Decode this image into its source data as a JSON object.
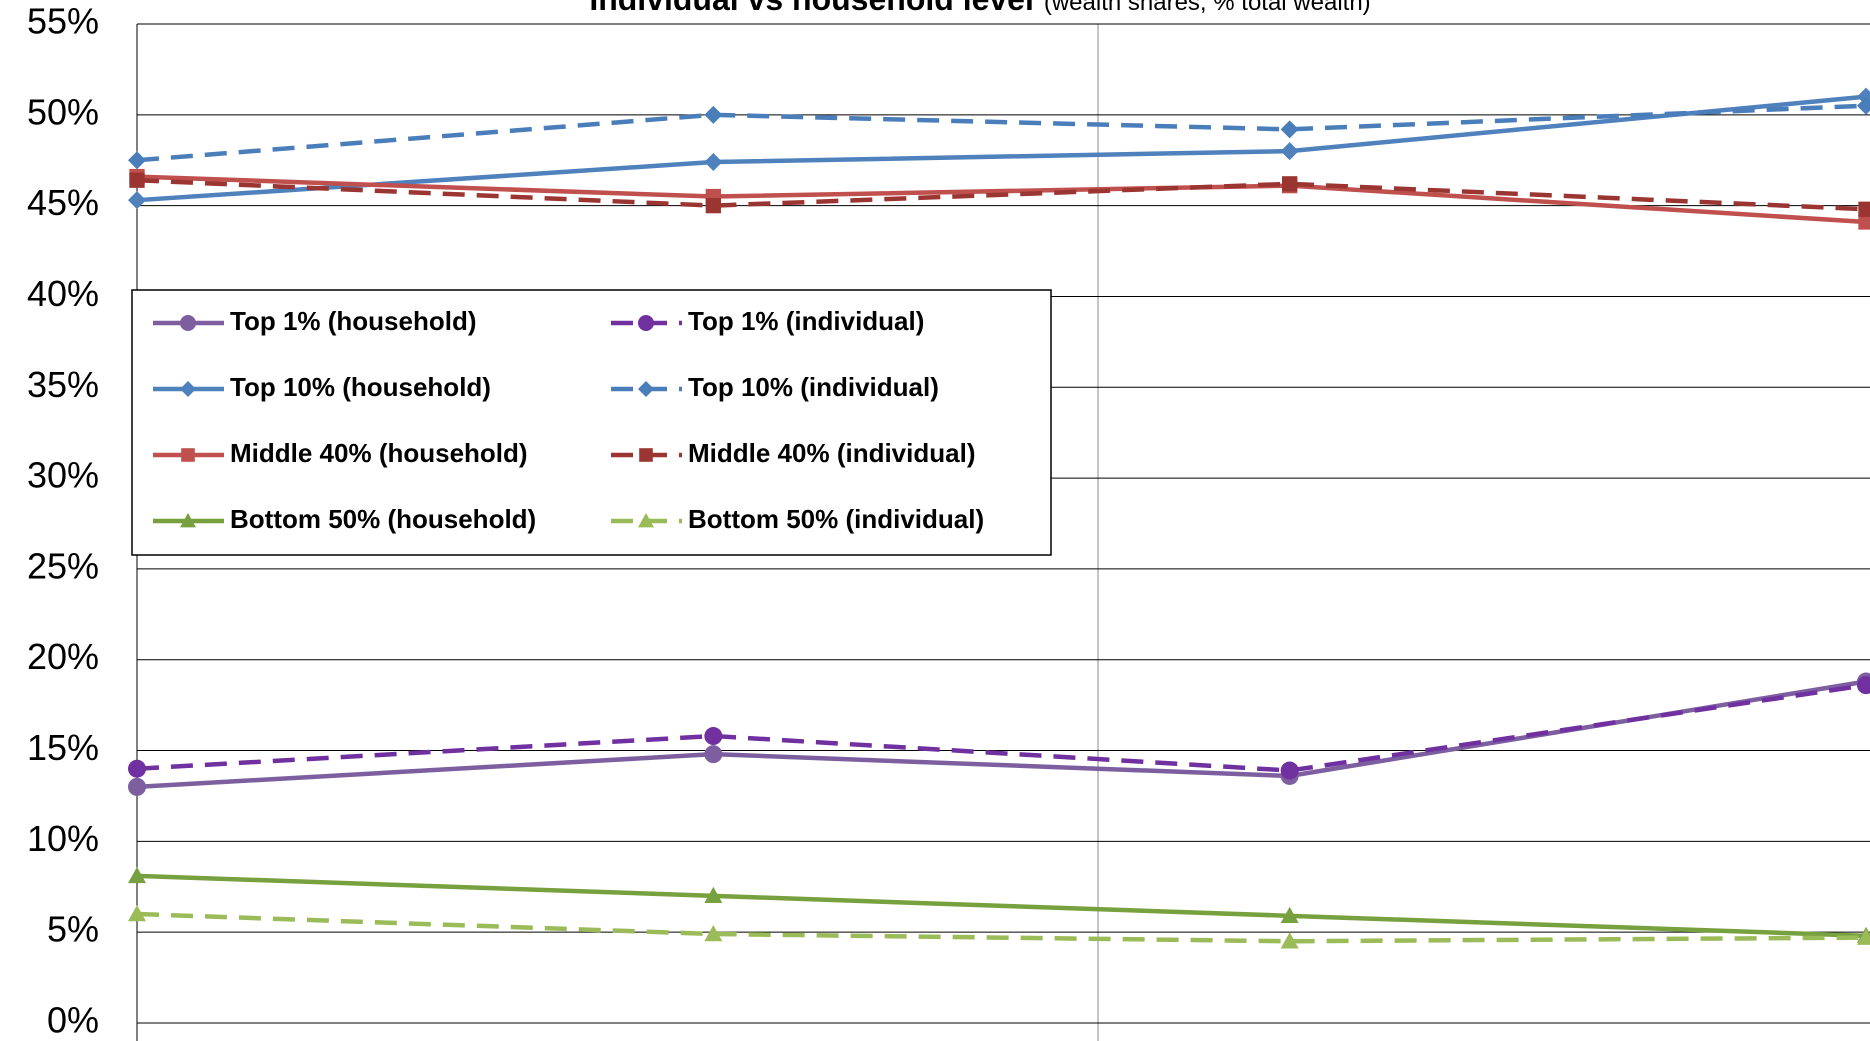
{
  "chart_data": {
    "type": "line",
    "title": "Individual vs household level",
    "subtitle": "(wealth shares, % total wealth)",
    "categories": [
      null,
      null,
      null,
      null
    ],
    "ylim": [
      0,
      55
    ],
    "yticks": [
      {
        "value": 0,
        "label": "0%"
      },
      {
        "value": 5,
        "label": "5%"
      },
      {
        "value": 10,
        "label": "10%"
      },
      {
        "value": 15,
        "label": "15%"
      },
      {
        "value": 20,
        "label": "20%"
      },
      {
        "value": 25,
        "label": "25%"
      },
      {
        "value": 30,
        "label": "30%"
      },
      {
        "value": 35,
        "label": "35%"
      },
      {
        "value": 40,
        "label": "40%"
      },
      {
        "value": 45,
        "label": "45%"
      },
      {
        "value": 50,
        "label": "50%"
      },
      {
        "value": 55,
        "label": "55%"
      }
    ],
    "grid": true,
    "legend": "upper left",
    "series": [
      {
        "name": "Top 1% (household)",
        "color": "#7d5fa0",
        "marker": "circle",
        "dashed": false,
        "values": [
          13.0,
          14.8,
          13.6,
          18.8
        ]
      },
      {
        "name": "Top 1% (individual)",
        "color": "#7030a0",
        "marker": "circle",
        "dashed": true,
        "values": [
          14.0,
          15.8,
          13.9,
          18.6
        ]
      },
      {
        "name": "Top 10% (household)",
        "color": "#4f81bd",
        "marker": "diamond",
        "dashed": false,
        "values": [
          45.3,
          47.4,
          48.0,
          51.0
        ]
      },
      {
        "name": "Top 10% (individual)",
        "color": "#4a7ebb",
        "marker": "diamond",
        "dashed": true,
        "values": [
          47.5,
          50.0,
          49.2,
          50.5
        ]
      },
      {
        "name": "Middle 40% (household)",
        "color": "#c0504d",
        "marker": "square",
        "dashed": false,
        "values": [
          46.6,
          45.5,
          46.1,
          44.1
        ]
      },
      {
        "name": "Middle 40% (individual)",
        "color": "#9b3532",
        "marker": "square",
        "dashed": true,
        "values": [
          46.4,
          45.0,
          46.2,
          44.8
        ]
      },
      {
        "name": "Bottom 50% (household)",
        "color": "#77a03e",
        "marker": "triangle",
        "dashed": false,
        "values": [
          8.1,
          7.0,
          5.9,
          4.8
        ]
      },
      {
        "name": "Bottom 50% (individual)",
        "color": "#9bbb59",
        "marker": "triangle",
        "dashed": true,
        "values": [
          6.0,
          4.9,
          4.5,
          4.7
        ]
      }
    ]
  }
}
